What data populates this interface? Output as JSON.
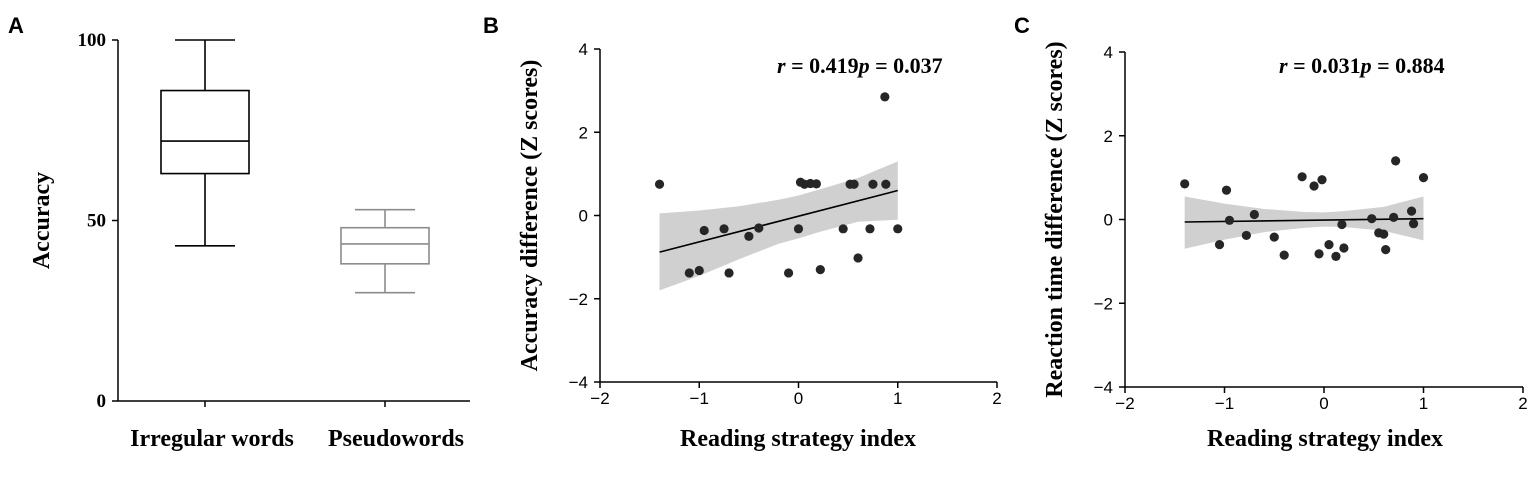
{
  "panels": {
    "a": {
      "letter": "A"
    },
    "b": {
      "letter": "B"
    },
    "c": {
      "letter": "C"
    }
  },
  "chart_data": [
    {
      "type": "box",
      "panel": "A",
      "ylabel": "Accuracy",
      "ylim": [
        0,
        100
      ],
      "yticks": [
        0,
        50,
        100
      ],
      "categories": [
        "Irregular words",
        "Pseudowords"
      ],
      "boxes": [
        {
          "category": "Irregular words",
          "min": 43,
          "q1": 63,
          "median": 72,
          "q3": 86,
          "max": 100,
          "color": "#000000"
        },
        {
          "category": "Pseudowords",
          "min": 30,
          "q1": 38,
          "median": 43.5,
          "q3": 48,
          "max": 53,
          "color": "#8c8c8c"
        }
      ]
    },
    {
      "type": "scatter",
      "panel": "B",
      "xlabel": "Reading strategy index",
      "ylabel": "Accuracy difference (Z scores)",
      "xlim": [
        -2,
        2
      ],
      "ylim": [
        -4,
        4
      ],
      "xticks": [
        -2,
        -1,
        0,
        1,
        2
      ],
      "yticks": [
        -4,
        -2,
        0,
        2,
        4
      ],
      "annotation": {
        "r_label": "r",
        "r_text": " = 0.419",
        "p_label": "p",
        "p_text": " = 0.037"
      },
      "points": [
        {
          "x": -1.4,
          "y": 0.75
        },
        {
          "x": -1.1,
          "y": -1.38
        },
        {
          "x": -1.0,
          "y": -1.32
        },
        {
          "x": -0.95,
          "y": -0.36
        },
        {
          "x": -0.75,
          "y": -0.32
        },
        {
          "x": -0.7,
          "y": -1.38
        },
        {
          "x": -0.5,
          "y": -0.5
        },
        {
          "x": -0.4,
          "y": -0.3
        },
        {
          "x": -0.1,
          "y": -1.38
        },
        {
          "x": 0.0,
          "y": -0.32
        },
        {
          "x": 0.02,
          "y": 0.8
        },
        {
          "x": 0.06,
          "y": 0.75
        },
        {
          "x": 0.12,
          "y": 0.77
        },
        {
          "x": 0.18,
          "y": 0.76
        },
        {
          "x": 0.22,
          "y": -1.3
        },
        {
          "x": 0.45,
          "y": -0.32
        },
        {
          "x": 0.52,
          "y": 0.75
        },
        {
          "x": 0.56,
          "y": 0.75
        },
        {
          "x": 0.6,
          "y": -1.02
        },
        {
          "x": 0.72,
          "y": -0.32
        },
        {
          "x": 0.75,
          "y": 0.75
        },
        {
          "x": 0.87,
          "y": 2.85
        },
        {
          "x": 0.88,
          "y": 0.75
        },
        {
          "x": 1.0,
          "y": -0.32
        }
      ],
      "fit": {
        "x": [
          -1.4,
          1.0
        ],
        "y": [
          -0.88,
          0.6
        ]
      },
      "ci_band": {
        "x": [
          -1.4,
          -1.0,
          -0.6,
          -0.2,
          0.0,
          0.2,
          0.6,
          1.0
        ],
        "upper": [
          0.05,
          0.12,
          0.22,
          0.38,
          0.48,
          0.62,
          0.9,
          1.3
        ],
        "lower": [
          -1.8,
          -1.45,
          -1.05,
          -0.68,
          -0.55,
          -0.4,
          -0.15,
          -0.1
        ]
      }
    },
    {
      "type": "scatter",
      "panel": "C",
      "xlabel": "Reading strategy index",
      "ylabel": "Reaction time  difference (Z scores)",
      "xlim": [
        -2,
        2
      ],
      "ylim": [
        -4,
        4
      ],
      "xticks": [
        -2,
        -1,
        0,
        1,
        2
      ],
      "yticks": [
        -4,
        -2,
        0,
        2,
        4
      ],
      "annotation": {
        "r_label": "r",
        "r_text": " = 0.031",
        "p_label": "p",
        "p_text": " = 0.884"
      },
      "points": [
        {
          "x": -1.4,
          "y": 0.85
        },
        {
          "x": -1.05,
          "y": -0.6
        },
        {
          "x": -0.98,
          "y": 0.7
        },
        {
          "x": -0.95,
          "y": -0.02
        },
        {
          "x": -0.78,
          "y": -0.38
        },
        {
          "x": -0.7,
          "y": 0.12
        },
        {
          "x": -0.5,
          "y": -0.42
        },
        {
          "x": -0.4,
          "y": -0.85
        },
        {
          "x": -0.22,
          "y": 1.02
        },
        {
          "x": -0.1,
          "y": 0.8
        },
        {
          "x": -0.05,
          "y": -0.82
        },
        {
          "x": -0.02,
          "y": 0.95
        },
        {
          "x": 0.05,
          "y": -0.6
        },
        {
          "x": 0.12,
          "y": -0.88
        },
        {
          "x": 0.18,
          "y": -0.12
        },
        {
          "x": 0.2,
          "y": -0.68
        },
        {
          "x": 0.48,
          "y": 0.02
        },
        {
          "x": 0.55,
          "y": -0.32
        },
        {
          "x": 0.6,
          "y": -0.35
        },
        {
          "x": 0.62,
          "y": -0.72
        },
        {
          "x": 0.7,
          "y": 0.05
        },
        {
          "x": 0.72,
          "y": 1.4
        },
        {
          "x": 0.88,
          "y": 0.2
        },
        {
          "x": 0.9,
          "y": -0.1
        },
        {
          "x": 1.0,
          "y": 1.0
        }
      ],
      "fit": {
        "x": [
          -1.4,
          1.0
        ],
        "y": [
          -0.06,
          0.02
        ]
      },
      "ci_band": {
        "x": [
          -1.4,
          -1.0,
          -0.6,
          -0.2,
          0.0,
          0.2,
          0.6,
          1.0
        ],
        "upper": [
          0.55,
          0.38,
          0.25,
          0.18,
          0.17,
          0.2,
          0.3,
          0.55
        ],
        "lower": [
          -0.7,
          -0.48,
          -0.3,
          -0.2,
          -0.17,
          -0.18,
          -0.27,
          -0.5
        ]
      }
    }
  ]
}
